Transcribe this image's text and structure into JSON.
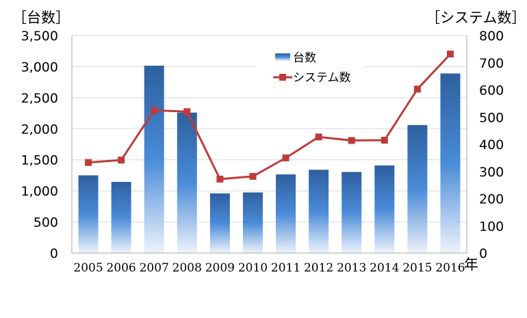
{
  "chart_data": {
    "type": "bar",
    "categories": [
      "2005",
      "2006",
      "2007",
      "2008",
      "2009",
      "2010",
      "2011",
      "2012",
      "2013",
      "2014",
      "2015",
      "2016"
    ],
    "series": [
      {
        "name": "台数",
        "type": "bar",
        "axis": "left",
        "values": [
          1250,
          1145,
          3015,
          2260,
          960,
          975,
          1265,
          1340,
          1305,
          1410,
          2060,
          2890
        ],
        "color": "#3b6fb6"
      },
      {
        "name": "システム数",
        "type": "line",
        "axis": "right",
        "values": [
          333,
          342,
          525,
          520,
          272,
          282,
          350,
          427,
          414,
          415,
          603,
          732
        ],
        "color": "#be3b3b"
      }
    ],
    "left_axis": {
      "unit_label": "［台数］",
      "range": [
        0,
        3500
      ],
      "ticks": [
        "0",
        "500",
        "1,000",
        "1,500",
        "2,000",
        "2,500",
        "3,000",
        "3,500"
      ]
    },
    "right_axis": {
      "unit_label": "［システム数］",
      "range": [
        0,
        800
      ],
      "ticks": [
        "0",
        "100",
        "200",
        "300",
        "400",
        "500",
        "600",
        "700",
        "800"
      ]
    },
    "x_unit_label": "年",
    "grid": true,
    "legend_position": "top-center"
  }
}
